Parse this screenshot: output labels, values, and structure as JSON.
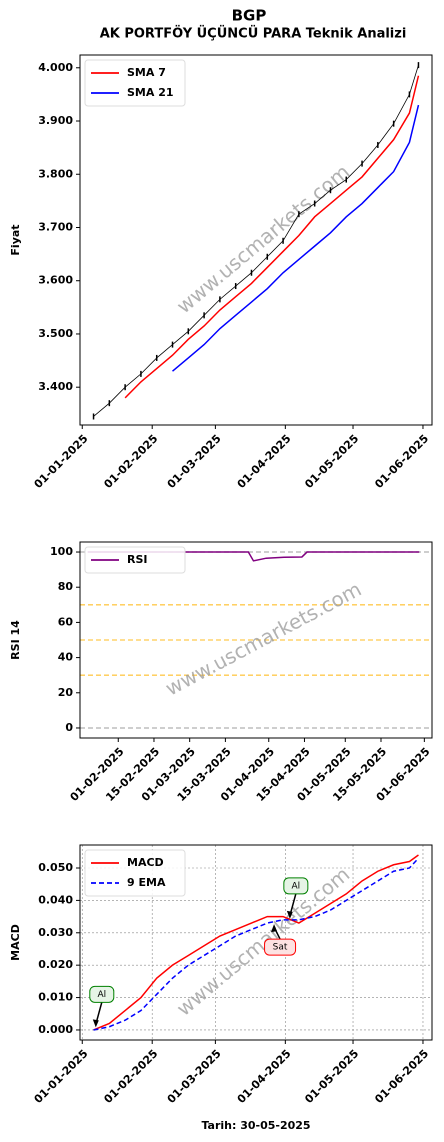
{
  "chart_data": [
    {
      "type": "line",
      "title": "BGP",
      "subtitle": "AK PORTFÖY ÜÇÜNCÜ PARA Teknik Analizi",
      "ylabel": "Fiyat",
      "watermark": "www.uscmarkets.com",
      "x": [
        "06-01-2025",
        "13-01-2025",
        "20-01-2025",
        "27-01-2025",
        "03-02-2025",
        "10-02-2025",
        "17-02-2025",
        "24-02-2025",
        "03-03-2025",
        "10-03-2025",
        "17-03-2025",
        "24-03-2025",
        "31-03-2025",
        "07-04-2025",
        "14-04-2025",
        "21-04-2025",
        "28-04-2025",
        "05-05-2025",
        "12-05-2025",
        "19-05-2025",
        "26-05-2025",
        "30-05-2025"
      ],
      "series": [
        {
          "color": "#000000",
          "marker": "|",
          "values": [
            3.345,
            3.37,
            3.4,
            3.425,
            3.455,
            3.48,
            3.505,
            3.535,
            3.565,
            3.59,
            3.615,
            3.645,
            3.675,
            3.725,
            3.745,
            3.77,
            3.79,
            3.82,
            3.855,
            3.895,
            3.95,
            4.005
          ]
        },
        {
          "name": "SMA 7",
          "color": "#ff0000",
          "values": [
            null,
            null,
            3.38,
            3.41,
            3.435,
            3.46,
            3.49,
            3.515,
            3.545,
            3.57,
            3.595,
            3.625,
            3.655,
            3.685,
            3.72,
            3.745,
            3.77,
            3.795,
            3.83,
            3.865,
            3.915,
            3.985
          ]
        },
        {
          "name": "SMA 21",
          "color": "#0000ff",
          "values": [
            null,
            null,
            null,
            null,
            null,
            3.43,
            3.455,
            3.48,
            3.51,
            3.535,
            3.56,
            3.585,
            3.615,
            3.64,
            3.665,
            3.69,
            3.72,
            3.745,
            3.775,
            3.805,
            3.86,
            3.93
          ]
        }
      ],
      "xlim": [
        "31-12-2024",
        "05-06-2025"
      ],
      "xticks": [
        "01-01-2025",
        "01-02-2025",
        "01-03-2025",
        "01-04-2025",
        "01-05-2025",
        "01-06-2025"
      ],
      "ylim": [
        3.329,
        4.024
      ],
      "yticks": [
        {
          "value": 3.4,
          "label": "3.400"
        },
        {
          "value": 3.5,
          "label": "3.500"
        },
        {
          "value": 3.6,
          "label": "3.600"
        },
        {
          "value": 3.7,
          "label": "3.700"
        },
        {
          "value": 3.8,
          "label": "3.800"
        },
        {
          "value": 3.9,
          "label": "3.900"
        },
        {
          "value": 4.0,
          "label": "4.000"
        }
      ],
      "legend": "upper left",
      "grid": false
    },
    {
      "type": "line",
      "ylabel": "RSI 14",
      "watermark": "www.uscmarkets.com",
      "x": [
        "20-01-2025",
        "27-01-2025",
        "03-02-2025",
        "10-02-2025",
        "17-02-2025",
        "24-02-2025",
        "03-03-2025",
        "10-03-2025",
        "17-03-2025",
        "24-03-2025",
        "26-03-2025",
        "31-03-2025",
        "07-04-2025",
        "14-04-2025",
        "16-04-2025",
        "21-04-2025",
        "28-04-2025",
        "05-05-2025",
        "12-05-2025",
        "19-05-2025",
        "26-05-2025",
        "30-05-2025"
      ],
      "series": [
        {
          "name": "RSI",
          "color": "#800080",
          "values": [
            100,
            100,
            100,
            100,
            100,
            100,
            100,
            100,
            100,
            100,
            95,
            96.5,
            97,
            97.2,
            100,
            100,
            100,
            100,
            100,
            100,
            100,
            100
          ]
        }
      ],
      "hlines": [
        {
          "value": 0,
          "color": "#b0b0b0"
        },
        {
          "value": 30,
          "color": "#ffc94d"
        },
        {
          "value": 50,
          "color": "#ffc94d"
        },
        {
          "value": 70,
          "color": "#ffc94d"
        },
        {
          "value": 100,
          "color": "#b0b0b0"
        }
      ],
      "xlim": [
        "17-01-2025",
        "04-06-2025"
      ],
      "xticks": [
        "01-02-2025",
        "15-02-2025",
        "01-03-2025",
        "15-03-2025",
        "01-04-2025",
        "15-04-2025",
        "01-05-2025",
        "15-05-2025",
        "01-06-2025"
      ],
      "ylim": [
        -5.7,
        105.7
      ],
      "yticks": [
        0,
        20,
        40,
        60,
        80,
        100
      ],
      "legend": "upper left",
      "grid": false
    },
    {
      "type": "line",
      "ylabel": "MACD",
      "xlabel": "Tarih: 30-05-2025",
      "watermark": "www.uscmarkets.com",
      "x": [
        "06-01-2025",
        "13-01-2025",
        "20-01-2025",
        "27-01-2025",
        "03-02-2025",
        "10-02-2025",
        "17-02-2025",
        "24-02-2025",
        "03-03-2025",
        "10-03-2025",
        "17-03-2025",
        "24-03-2025",
        "31-03-2025",
        "07-04-2025",
        "14-04-2025",
        "21-04-2025",
        "28-04-2025",
        "05-05-2025",
        "12-05-2025",
        "19-05-2025",
        "26-05-2025",
        "30-05-2025"
      ],
      "series": [
        {
          "name": "MACD",
          "color": "#ff0000",
          "values": [
            0.0,
            0.002,
            0.006,
            0.01,
            0.016,
            0.02,
            0.023,
            0.026,
            0.029,
            0.031,
            0.033,
            0.035,
            0.035,
            0.033,
            0.036,
            0.039,
            0.042,
            0.046,
            0.049,
            0.051,
            0.052,
            0.054
          ]
        },
        {
          "name": "9 EMA",
          "color": "#0000ff",
          "linestyle": "dashed",
          "values": [
            0.0,
            0.001,
            0.003,
            0.006,
            0.011,
            0.016,
            0.02,
            0.023,
            0.026,
            0.029,
            0.031,
            0.033,
            0.034,
            0.034,
            0.035,
            0.037,
            0.04,
            0.043,
            0.046,
            0.049,
            0.05,
            0.053
          ]
        }
      ],
      "annotations": [
        {
          "text": "Al",
          "x": "07-01-2025",
          "y": 0.0005,
          "color": "#008000",
          "side": "above"
        },
        {
          "text": "Sat",
          "x": "27-03-2025",
          "y": 0.033,
          "color": "#ff0000",
          "side": "below"
        },
        {
          "text": "Al",
          "x": "03-04-2025",
          "y": 0.034,
          "color": "#008000",
          "side": "above"
        }
      ],
      "xlim": [
        "31-12-2024",
        "05-06-2025"
      ],
      "xticks": [
        "01-01-2025",
        "01-02-2025",
        "01-03-2025",
        "01-04-2025",
        "01-05-2025",
        "01-06-2025"
      ],
      "ylim": [
        -0.0031,
        0.0571
      ],
      "yticks": [
        {
          "value": 0,
          "label": "0.000"
        },
        {
          "value": 0.01,
          "label": "0.010"
        },
        {
          "value": 0.02,
          "label": "0.020"
        },
        {
          "value": 0.03,
          "label": "0.030"
        },
        {
          "value": 0.04,
          "label": "0.040"
        },
        {
          "value": 0.05,
          "label": "0.050"
        }
      ],
      "legend": "upper left",
      "grid": true
    }
  ]
}
